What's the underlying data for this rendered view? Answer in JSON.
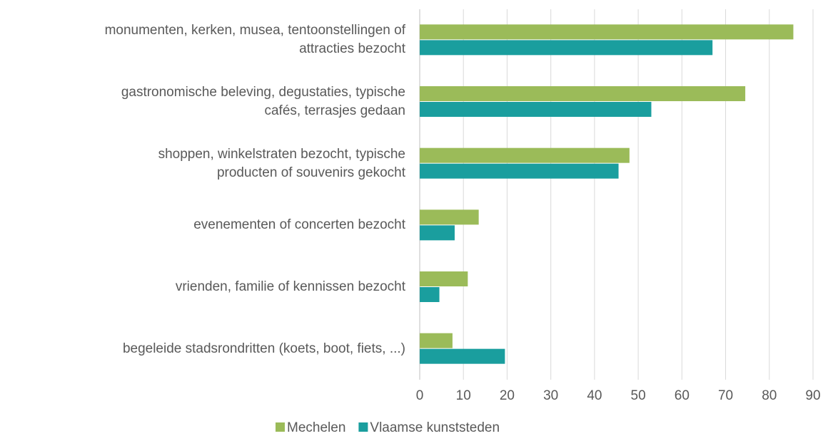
{
  "chart_data": {
    "type": "hbar",
    "categories": [
      "monumenten, kerken, musea, tentoonstellingen of\nattracties bezocht",
      "gastronomische beleving, degustaties, typische\ncafés, terrasjes gedaan",
      "shoppen, winkelstraten bezocht, typische\nproducten of souvenirs gekocht",
      "evenementen of concerten bezocht",
      "vrienden, familie of kennissen bezocht",
      "begeleide stadsrondritten (koets, boot, fiets, ...)"
    ],
    "series": [
      {
        "name": "Mechelen",
        "color": "#9bbb59",
        "values": [
          85.5,
          74.5,
          48,
          13.5,
          11,
          7.5
        ]
      },
      {
        "name": "Vlaamse kunststeden",
        "color": "#1a9e9e",
        "values": [
          67,
          53,
          45.5,
          8,
          4.5,
          19.5
        ]
      }
    ],
    "xlim": [
      0,
      90
    ],
    "xticks": [
      0,
      10,
      20,
      30,
      40,
      50,
      60,
      70,
      80,
      90
    ],
    "grid": true,
    "legend": "bottom"
  }
}
